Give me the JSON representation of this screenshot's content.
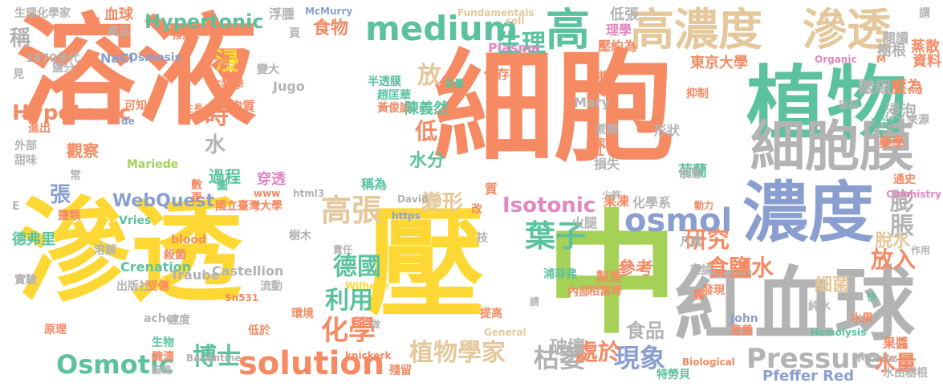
{
  "palette": {
    "orange": "#f58a63",
    "yellow": "#fdd835",
    "teal": "#5cc29e",
    "blue": "#8a9fd0",
    "pink": "#e287c0",
    "green": "#a5d157",
    "gray": "#b3b3b3",
    "tan": "#e4c89b"
  },
  "words": [
    {
      "text": "溶液",
      "color": "orange",
      "vertical": false
    },
    {
      "text": "細胞",
      "color": "orange",
      "vertical": false
    },
    {
      "text": "滲透",
      "color": "yellow",
      "vertical": false
    },
    {
      "text": "壓",
      "color": "yellow",
      "vertical": false
    },
    {
      "text": "中",
      "color": "green",
      "vertical": false
    },
    {
      "text": "植物",
      "color": "teal",
      "vertical": false
    },
    {
      "text": "紅血球",
      "color": "gray",
      "vertical": false
    },
    {
      "text": "濃度",
      "color": "blue",
      "vertical": false
    },
    {
      "text": "細胞膜",
      "color": "gray",
      "vertical": false
    },
    {
      "text": "高濃度",
      "color": "tan",
      "vertical": false
    },
    {
      "text": "滲透",
      "color": "tan",
      "vertical": false
    },
    {
      "text": "高",
      "color": "teal",
      "vertical": false
    },
    {
      "text": "medium",
      "color": "teal",
      "vertical": false
    },
    {
      "text": "osmol",
      "color": "blue",
      "vertical": false
    },
    {
      "text": "solution",
      "color": "orange",
      "vertical": false
    },
    {
      "text": "Osmotic",
      "color": "teal",
      "vertical": false
    },
    {
      "text": "Pressure",
      "color": "gray",
      "vertical": false
    },
    {
      "text": "Isotonic",
      "color": "pink",
      "vertical": false
    },
    {
      "text": "高張",
      "color": "tan",
      "vertical": false
    },
    {
      "text": "葉子",
      "color": "teal",
      "vertical": false
    },
    {
      "text": "化學",
      "color": "orange",
      "vertical": false
    },
    {
      "text": "德國",
      "color": "teal",
      "vertical": false
    },
    {
      "text": "利用",
      "color": "teal",
      "vertical": false
    },
    {
      "text": "博士",
      "color": "teal",
      "vertical": false
    },
    {
      "text": "植物學家",
      "color": "tan",
      "vertical": false
    },
    {
      "text": "枯萎",
      "color": "gray",
      "vertical": false
    },
    {
      "text": "現象",
      "color": "blue",
      "vertical": false
    },
    {
      "text": "研究",
      "color": "orange",
      "vertical": false
    },
    {
      "text": "食鹽水",
      "color": "orange",
      "vertical": false
    },
    {
      "text": "膨脹",
      "color": "gray",
      "vertical": true
    },
    {
      "text": "放入",
      "color": "orange",
      "vertical": false
    },
    {
      "text": "脫水",
      "color": "tan",
      "vertical": false
    },
    {
      "text": "細菌",
      "color": "tan",
      "vertical": false
    },
    {
      "text": "水量",
      "color": "orange",
      "vertical": false
    },
    {
      "text": "Hypertonic",
      "color": "teal",
      "vertical": false
    },
    {
      "text": "Hypotonic",
      "color": "orange",
      "vertical": false
    },
    {
      "text": "生理",
      "color": "teal",
      "vertical": false
    },
    {
      "text": "時",
      "color": "orange",
      "vertical": false
    },
    {
      "text": "水",
      "color": "gray",
      "vertical": false
    },
    {
      "text": "浸",
      "color": "yellow",
      "vertical": true
    },
    {
      "text": "過程",
      "color": "teal",
      "vertical": false
    },
    {
      "text": "張",
      "color": "blue",
      "vertical": false
    },
    {
      "text": "稱",
      "color": "gray",
      "vertical": false
    },
    {
      "text": "放",
      "color": "tan",
      "vertical": false
    },
    {
      "text": "低",
      "color": "orange",
      "vertical": false
    },
    {
      "text": "水分",
      "color": "teal",
      "vertical": false
    },
    {
      "text": "變形",
      "color": "tan",
      "vertical": false
    },
    {
      "text": "食品",
      "color": "gray",
      "vertical": false
    },
    {
      "text": "處於",
      "color": "orange",
      "vertical": false
    },
    {
      "text": "參考",
      "color": "orange",
      "vertical": false
    },
    {
      "text": "破壞",
      "color": "gray",
      "vertical": false
    },
    {
      "text": "WebQuest",
      "color": "blue",
      "vertical": false
    },
    {
      "text": "Crenation",
      "color": "teal",
      "vertical": false
    },
    {
      "text": "Pfeffer Red",
      "color": "blue",
      "vertical": false
    },
    {
      "text": "食物",
      "color": "orange",
      "vertical": false
    },
    {
      "text": "NaCl",
      "color": "blue",
      "vertical": false
    },
    {
      "text": "Osmosis",
      "color": "blue",
      "vertical": false
    },
    {
      "text": "Plasma",
      "color": "pink",
      "vertical": false
    },
    {
      "text": "生理化學家",
      "color": "gray",
      "vertical": false
    },
    {
      "text": "糖",
      "color": "orange",
      "vertical": false
    },
    {
      "text": "血球",
      "color": "orange",
      "vertical": false
    },
    {
      "text": "高品",
      "color": "gray",
      "vertical": false
    },
    {
      "text": "1870年代",
      "color": "gray",
      "vertical": false
    },
    {
      "text": "浮腫",
      "color": "gray",
      "vertical": false
    },
    {
      "text": "McMurry",
      "color": "blue",
      "vertical": false
    },
    {
      "text": "Fundamentals",
      "color": "tan",
      "vertical": false
    },
    {
      "text": "cell",
      "color": "tan",
      "vertical": false
    },
    {
      "text": "低張",
      "color": "gray",
      "vertical": false
    },
    {
      "text": "謂",
      "color": "gray",
      "vertical": false
    },
    {
      "text": "壓約為",
      "color": "orange",
      "vertical": false
    },
    {
      "text": "東京大學",
      "color": "orange",
      "vertical": false
    },
    {
      "text": "理學",
      "color": "pink",
      "vertical": false
    },
    {
      "text": "閱讀",
      "color": "gray",
      "vertical": false
    },
    {
      "text": "樹根",
      "color": "gray",
      "vertical": false
    },
    {
      "text": "Organic",
      "color": "pink",
      "vertical": false
    },
    {
      "text": "蒸散",
      "color": "orange",
      "vertical": false
    },
    {
      "text": "資料",
      "color": "orange",
      "vertical": false
    },
    {
      "text": "皺縮",
      "color": "gray",
      "vertical": false
    },
    {
      "text": "壓為",
      "color": "orange",
      "vertical": false
    },
    {
      "text": "生物學",
      "color": "orange",
      "vertical": false
    },
    {
      "text": "變大",
      "color": "gray",
      "vertical": false
    },
    {
      "text": "Jugo",
      "color": "gray",
      "vertical": false
    },
    {
      "text": "細胞質",
      "color": "orange",
      "vertical": false
    },
    {
      "text": "半透膜",
      "color": "teal",
      "vertical": false
    },
    {
      "text": "趙匡華",
      "color": "teal",
      "vertical": false
    },
    {
      "text": "黃俊誠",
      "color": "orange",
      "vertical": false
    },
    {
      "text": "陳義然",
      "color": "teal",
      "vertical": false
    },
    {
      "text": "抑制",
      "color": "orange",
      "vertical": false
    },
    {
      "text": "浸泡",
      "color": "gray",
      "vertical": false
    },
    {
      "text": "運送",
      "color": "teal",
      "vertical": false
    },
    {
      "text": "來源",
      "color": "gray",
      "vertical": false
    },
    {
      "text": "蔗糖",
      "color": "gray",
      "vertical": false
    },
    {
      "text": "壓和",
      "color": "orange",
      "vertical": false
    },
    {
      "text": "形狀",
      "color": "gray",
      "vertical": false
    },
    {
      "text": "荷蘭",
      "color": "teal",
      "vertical": false
    },
    {
      "text": "可知",
      "color": "orange",
      "vertical": false
    },
    {
      "text": "外部",
      "color": "gray",
      "vertical": false
    },
    {
      "text": "觀察",
      "color": "orange",
      "vertical": false
    },
    {
      "text": "甜味",
      "color": "gray",
      "vertical": false
    },
    {
      "text": "Mariede",
      "color": "green",
      "vertical": false
    },
    {
      "text": "Vries",
      "color": "teal",
      "vertical": false
    },
    {
      "text": "穿透",
      "color": "pink",
      "vertical": false
    },
    {
      "text": "稱為",
      "color": "teal",
      "vertical": false
    },
    {
      "text": "化學系",
      "color": "gray",
      "vertical": false
    },
    {
      "text": "國立臺灣大學",
      "color": "orange",
      "vertical": false
    },
    {
      "text": "德弗里",
      "color": "teal",
      "vertical": false
    },
    {
      "text": "溶解",
      "color": "gray",
      "vertical": false
    },
    {
      "text": "blood",
      "color": "orange",
      "vertical": false
    },
    {
      "text": "殺菌",
      "color": "orange",
      "vertical": false
    },
    {
      "text": "樹木",
      "color": "gray",
      "vertical": false
    },
    {
      "text": "Traube",
      "color": "gray",
      "vertical": false
    },
    {
      "text": "實驗",
      "color": "gray",
      "vertical": false
    },
    {
      "text": "出版社",
      "color": "gray",
      "vertical": false
    },
    {
      "text": "受傷",
      "color": "orange",
      "vertical": false
    },
    {
      "text": "流動",
      "color": "gray",
      "vertical": false
    },
    {
      "text": "Wilhelm",
      "color": "yellow",
      "vertical": false
    },
    {
      "text": "浦菲弗",
      "color": "teal",
      "vertical": false
    },
    {
      "text": "製造",
      "color": "orange",
      "vertical": false
    },
    {
      "text": "內部",
      "color": "orange",
      "vertical": false
    },
    {
      "text": "相當時",
      "color": "orange",
      "vertical": false
    },
    {
      "text": "發現",
      "color": "orange",
      "vertical": false
    },
    {
      "text": "理論",
      "color": "gray",
      "vertical": false
    },
    {
      "text": "純水",
      "color": "gray",
      "vertical": false
    },
    {
      "text": "水果",
      "color": "orange",
      "vertical": false
    },
    {
      "text": "環境",
      "color": "orange",
      "vertical": false
    },
    {
      "text": "提高",
      "color": "orange",
      "vertical": false
    },
    {
      "text": "John",
      "color": "blue",
      "vertical": false
    },
    {
      "text": "意義",
      "color": "orange",
      "vertical": false
    },
    {
      "text": "Moritz",
      "color": "gray",
      "vertical": false
    },
    {
      "text": "特勞貝",
      "color": "teal",
      "vertical": false
    },
    {
      "text": "果醬",
      "color": "orange",
      "vertical": false
    },
    {
      "text": "水由樹根",
      "color": "gray",
      "vertical": false
    },
    {
      "text": "knickerk",
      "color": "orange",
      "vertical": false
    },
    {
      "text": "殘留",
      "color": "orange",
      "vertical": false
    },
    {
      "text": "Biological",
      "color": "orange",
      "vertical": false
    },
    {
      "text": "General",
      "color": "tan",
      "vertical": false
    },
    {
      "text": "Ballantine",
      "color": "gray",
      "vertical": false
    },
    {
      "text": "速度",
      "color": "gray",
      "vertical": false
    },
    {
      "text": "原理",
      "color": "orange",
      "vertical": false
    },
    {
      "text": "生物",
      "color": "teal",
      "vertical": false
    },
    {
      "text": "醃漬",
      "color": "orange",
      "vertical": false
    },
    {
      "text": "編輯",
      "color": "gray",
      "vertical": false
    },
    {
      "text": "低於",
      "color": "orange",
      "vertical": false
    },
    {
      "text": "Hemolysis",
      "color": "teal",
      "vertical": false
    },
    {
      "text": "Chemistry",
      "color": "pink",
      "vertical": false
    },
    {
      "text": "作用",
      "color": "gray",
      "vertical": false
    },
    {
      "text": "凡異",
      "color": "gray",
      "vertical": false
    },
    {
      "text": "果凍",
      "color": "orange",
      "vertical": false
    },
    {
      "text": "火腿",
      "color": "gray",
      "vertical": false
    },
    {
      "text": "藥學",
      "color": "orange",
      "vertical": false
    },
    {
      "text": "培根",
      "color": "orange",
      "vertical": false
    },
    {
      "text": "保存",
      "color": "orange",
      "vertical": false
    },
    {
      "text": "破裂",
      "color": "gray",
      "vertical": false
    },
    {
      "text": "鹽分",
      "color": "gray",
      "vertical": false
    },
    {
      "text": "www",
      "color": "orange",
      "vertical": false
    },
    {
      "text": "html3",
      "color": "gray",
      "vertical": false
    },
    {
      "text": "David",
      "color": "gray",
      "vertical": false
    },
    {
      "text": "https",
      "color": "blue",
      "vertical": false
    },
    {
      "text": "責任",
      "color": "gray",
      "vertical": false
    },
    {
      "text": "鹽類",
      "color": "orange",
      "vertical": false
    },
    {
      "text": "進出",
      "color": "orange",
      "vertical": false
    },
    {
      "text": "Castellion",
      "color": "gray",
      "vertical": false
    },
    {
      "text": "acher",
      "color": "gray",
      "vertical": false
    },
    {
      "text": "Sn531",
      "color": "orange",
      "vertical": false
    },
    {
      "text": "生長",
      "color": "orange",
      "vertical": false
    },
    {
      "text": "推測",
      "color": "orange",
      "vertical": false
    },
    {
      "text": "定量",
      "color": "teal",
      "vertical": false
    },
    {
      "text": "少許",
      "color": "gray",
      "vertical": false
    },
    {
      "text": "動力",
      "color": "orange",
      "vertical": false
    },
    {
      "text": "Mary",
      "color": "gray",
      "vertical": false
    },
    {
      "text": "損失",
      "color": "gray",
      "vertical": false
    },
    {
      "text": "狀態",
      "color": "gray",
      "vertical": false
    },
    {
      "text": "通史",
      "color": "orange",
      "vertical": false
    },
    {
      "text": "快",
      "color": "teal",
      "vertical": false
    },
    {
      "text": "遠",
      "color": "orange",
      "vertical": false
    },
    {
      "text": "見",
      "color": "gray",
      "vertical": false
    },
    {
      "text": "常",
      "color": "gray",
      "vertical": false
    },
    {
      "text": "更",
      "color": "orange",
      "vertical": false
    },
    {
      "text": "紅",
      "color": "orange",
      "vertical": false
    },
    {
      "text": "質",
      "color": "orange",
      "vertical": false
    },
    {
      "text": "改",
      "color": "orange",
      "vertical": false
    },
    {
      "text": "做",
      "color": "gray",
      "vertical": false
    },
    {
      "text": "圖",
      "color": "teal",
      "vertical": false
    },
    {
      "text": "數",
      "color": "orange",
      "vertical": false
    },
    {
      "text": "膜",
      "color": "orange",
      "vertical": false
    },
    {
      "text": "頁",
      "color": "gray",
      "vertical": false
    },
    {
      "text": "技",
      "color": "gray",
      "vertical": false
    },
    {
      "text": "請",
      "color": "gray",
      "vertical": false
    },
    {
      "text": "de",
      "color": "blue",
      "vertical": false
    },
    {
      "text": "E",
      "color": "gray",
      "vertical": false
    },
    {
      "text": "M",
      "color": "orange",
      "vertical": false
    },
    {
      "text": "s",
      "color": "gray",
      "vertical": false
    },
    {
      "text": "msu",
      "color": "yellow",
      "vertical": false
    },
    {
      "text": "內外",
      "color": "teal",
      "vertical": false
    },
    {
      "text": "樹根",
      "color": "gray",
      "vertical": false
    }
  ]
}
